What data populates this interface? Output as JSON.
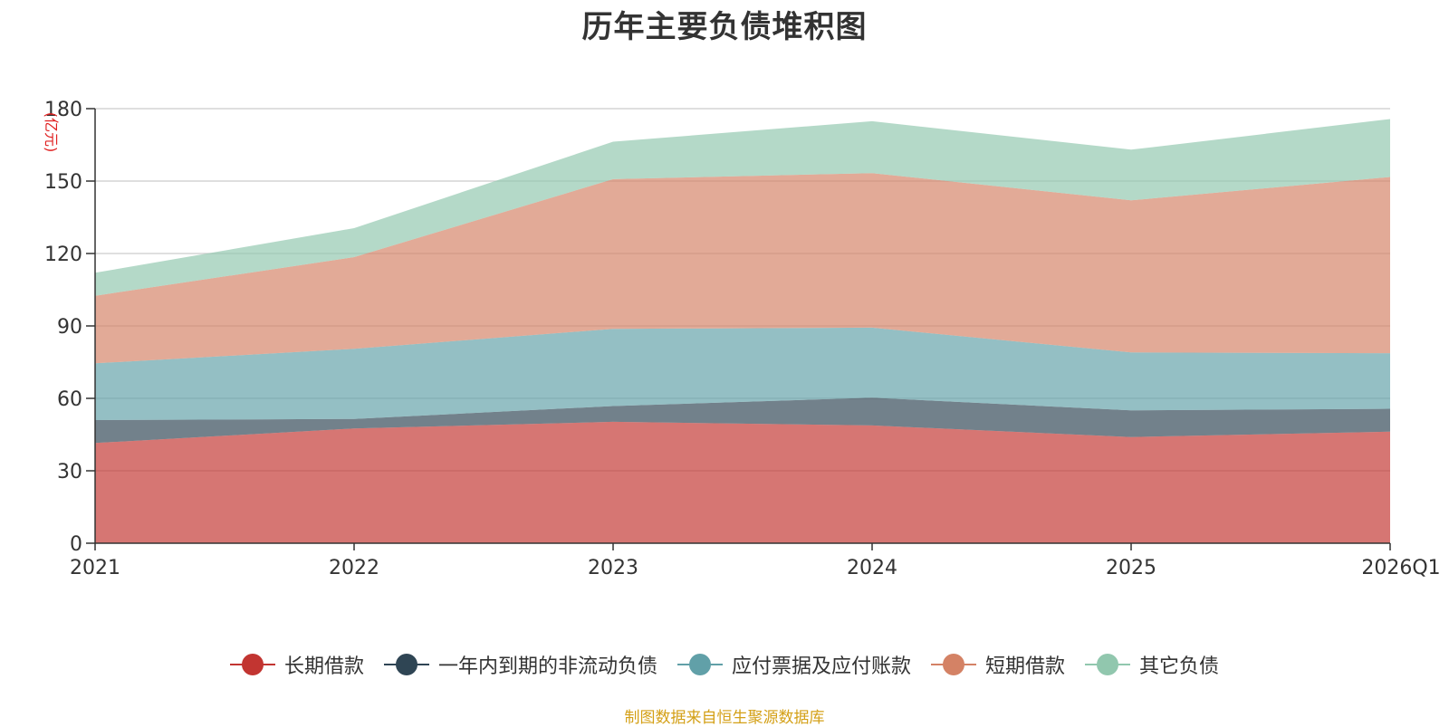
{
  "title": "历年主要负债堆积图",
  "source": "制图数据来自恒生聚源数据库",
  "source_color": "#d4a017",
  "unit_color": "#e02020",
  "chart_data": {
    "type": "area",
    "stacked": true,
    "title": "历年主要负债堆积图",
    "ylabel": "(亿元)",
    "categories": [
      "2021",
      "2022",
      "2023",
      "2024",
      "2025",
      "2026Q1"
    ],
    "ylim": [
      0,
      180
    ],
    "yticks": [
      0,
      30,
      60,
      90,
      120,
      150,
      180
    ],
    "grid": true,
    "legend_position": "bottom",
    "series": [
      {
        "name": "长期借款",
        "color": "#c23531",
        "values": [
          41.5,
          47.5,
          50.3,
          48.8,
          44.0,
          46.2
        ]
      },
      {
        "name": "一年内到期的非流动负债",
        "color": "#2f4554",
        "values": [
          9.5,
          4.0,
          6.5,
          11.5,
          11.0,
          9.5
        ]
      },
      {
        "name": "应付票据及应付账款",
        "color": "#61a0a8",
        "values": [
          23.5,
          29.0,
          32.0,
          29.0,
          24.0,
          23.0
        ]
      },
      {
        "name": "短期借款",
        "color": "#d48265",
        "values": [
          28.0,
          38.0,
          62.0,
          64.0,
          63.0,
          73.0
        ]
      },
      {
        "name": "其它负债",
        "color": "#91c7ae",
        "values": [
          9.5,
          12.0,
          15.5,
          21.5,
          21.0,
          24.0
        ]
      }
    ]
  }
}
